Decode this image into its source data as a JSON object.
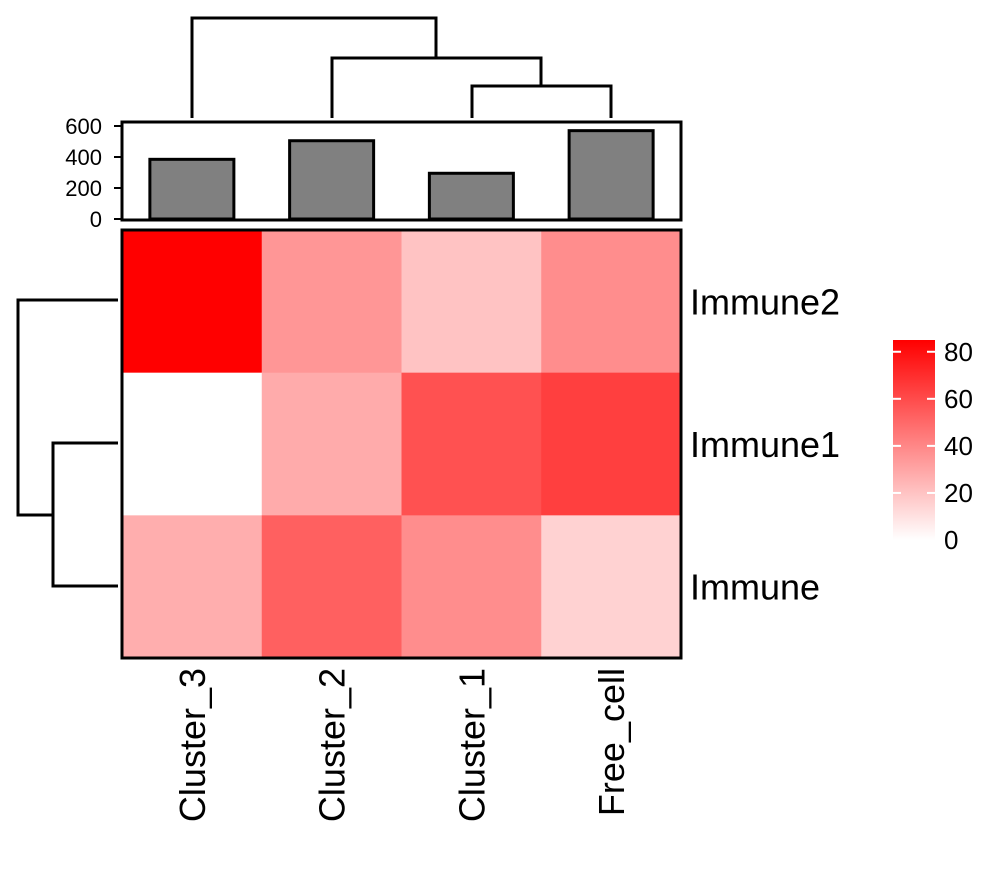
{
  "chart_data": {
    "type": "heatmap",
    "columns": [
      "Cluster_3",
      "Cluster_2",
      "Cluster_1",
      "Free_cell"
    ],
    "rows": [
      "Immune2",
      "Immune1",
      "Immune"
    ],
    "values": [
      [
        85,
        35,
        20,
        38
      ],
      [
        0,
        28,
        58,
        64
      ],
      [
        27,
        53,
        38,
        15
      ]
    ],
    "color_scale": {
      "min": 0,
      "max": 85,
      "low": "#ffffff",
      "high": "#ff0000"
    },
    "bar_annotation": {
      "values": [
        385,
        505,
        295,
        570
      ],
      "ylim": [
        0,
        600
      ],
      "ticks": [
        "0",
        "200",
        "400",
        "600"
      ],
      "bar_color": "#808080"
    },
    "legend": {
      "ticks": [
        "0",
        "20",
        "40",
        "60",
        "80"
      ],
      "tick_values": [
        0,
        20,
        40,
        60,
        80
      ]
    },
    "column_dendrogram": "((Cluster_3,(Cluster_2,(Cluster_1,Free_cell))))",
    "row_dendrogram": "(Immune2,(Immune1,Immune))"
  }
}
